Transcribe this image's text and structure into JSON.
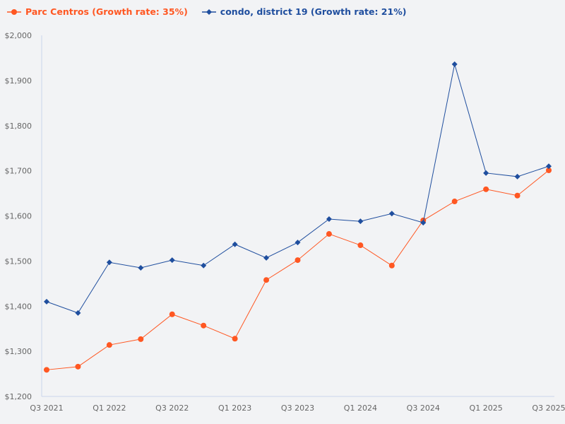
{
  "chart_data": {
    "type": "line",
    "categories": [
      "Q3 2021",
      "Q4 2021",
      "Q1 2022",
      "Q2 2022",
      "Q3 2022",
      "Q4 2022",
      "Q1 2023",
      "Q2 2023",
      "Q3 2023",
      "Q4 2023",
      "Q1 2024",
      "Q2 2024",
      "Q3 2024",
      "Q4 2024",
      "Q1 2025",
      "Q2 2025",
      "Q3 2025"
    ],
    "x_tick_labels": [
      "Q3 2021",
      "Q1 2022",
      "Q3 2022",
      "Q1 2023",
      "Q3 2023",
      "Q1 2024",
      "Q3 2024",
      "Q1 2025",
      "Q3 2025"
    ],
    "y_tick_labels": [
      "$1,200",
      "$1,300",
      "$1,400",
      "$1,500",
      "$1,600",
      "$1,700",
      "$1,800",
      "$1,900",
      "$2,000"
    ],
    "ylim": [
      1200,
      2000
    ],
    "grid": false,
    "legend_position": "top-left",
    "series": [
      {
        "name": "Parc Centros (Growth rate: 35%)",
        "color": "#ff5722",
        "marker": "circle",
        "values": [
          1259,
          1266,
          1314,
          1327,
          1382,
          1357,
          1328,
          1458,
          1502,
          1560,
          1535,
          1490,
          1590,
          1632,
          1659,
          1645,
          1701
        ]
      },
      {
        "name": "condo, district 19 (Growth rate: 21%)",
        "color": "#1f4e9e",
        "marker": "diamond",
        "values": [
          1410,
          1385,
          1497,
          1485,
          1502,
          1490,
          1537,
          1507,
          1541,
          1593,
          1588,
          1605,
          1585,
          1936,
          1695,
          1687,
          1710
        ]
      }
    ]
  }
}
